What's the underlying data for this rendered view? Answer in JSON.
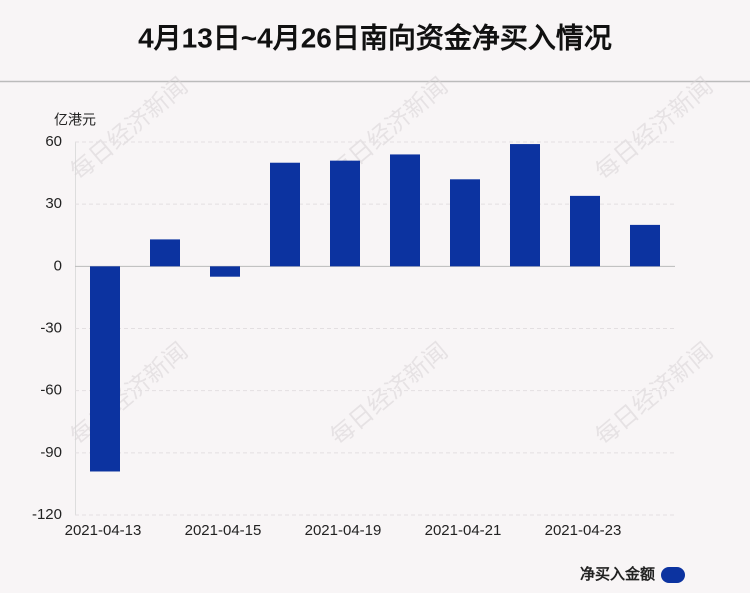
{
  "chart_data": {
    "type": "bar",
    "title": "4月13日~4月26日南向资金净买入情况",
    "y_label": "亿港元",
    "watermark": "每日经济新闻",
    "categories": [
      "2021-04-13",
      null,
      "2021-04-15",
      null,
      "2021-04-19",
      null,
      "2021-04-21",
      null,
      "2021-04-23",
      null
    ],
    "series": [
      {
        "name": "净买入金额",
        "color": "#0c33a0",
        "values": [
          -99,
          13,
          -5,
          50,
          51,
          54,
          42,
          59,
          34,
          20
        ]
      }
    ],
    "ylim": [
      -120,
      60
    ],
    "yticks": [
      -120,
      -90,
      -60,
      -30,
      0,
      30,
      60
    ],
    "grid": true,
    "legend": "bottom-right"
  }
}
